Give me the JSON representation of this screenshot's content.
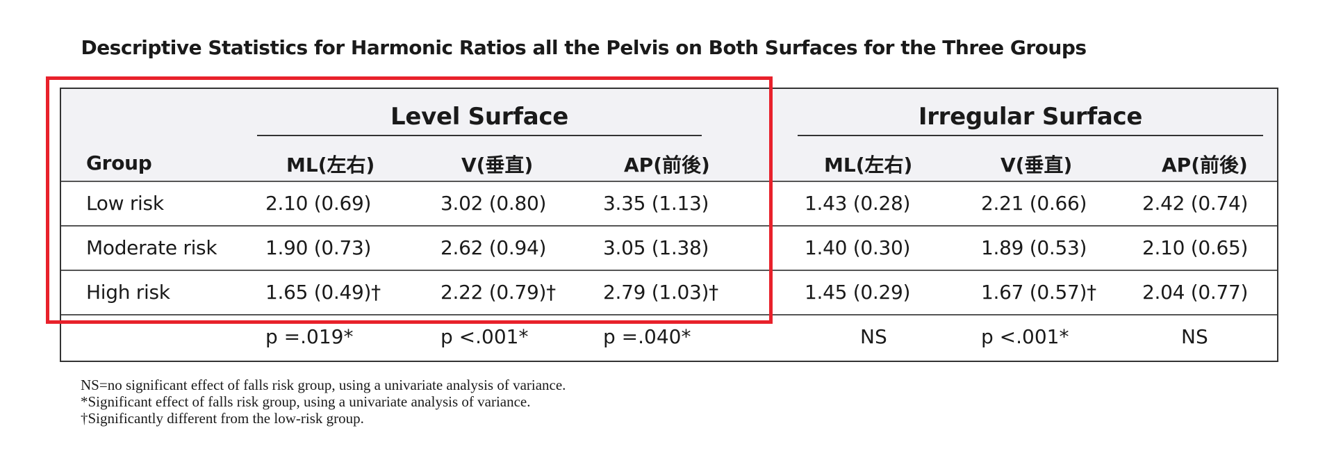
{
  "title": "Descriptive Statistics for Harmonic Ratios all the Pelvis on Both Surfaces for the Three Groups",
  "table": {
    "group_header": "Group",
    "surfaces": [
      {
        "label": "Level Surface",
        "columns": [
          "ML(左右)",
          "V(垂直)",
          "AP(前後)"
        ]
      },
      {
        "label": "Irregular Surface",
        "columns": [
          "ML(左右)",
          "V(垂直)",
          "AP(前後)"
        ]
      }
    ],
    "rows": [
      {
        "group": "Low risk",
        "level": [
          "2.10 (0.69)",
          "3.02 (0.80)",
          "3.35 (1.13)"
        ],
        "irregular": [
          "1.43 (0.28)",
          "2.21 (0.66)",
          "2.42 (0.74)"
        ]
      },
      {
        "group": "Moderate risk",
        "level": [
          "1.90 (0.73)",
          "2.62 (0.94)",
          "3.05 (1.38)"
        ],
        "irregular": [
          "1.40 (0.30)",
          "1.89 (0.53)",
          "2.10 (0.65)"
        ]
      },
      {
        "group": "High risk",
        "level": [
          "1.65 (0.49)†",
          "2.22 (0.79)†",
          "2.79 (1.03)†"
        ],
        "irregular": [
          "1.45 (0.29)",
          "1.67 (0.57)†",
          "2.04 (0.77)"
        ]
      }
    ],
    "p_values": {
      "level": [
        "p =.019*",
        "p <.001*",
        "p =.040*"
      ],
      "irregular": [
        "NS",
        "p <.001*",
        "NS"
      ]
    }
  },
  "footnotes": [
    "NS=no significant effect of falls risk group, using a univariate analysis of variance.",
    "*Significant effect of falls risk group, using a univariate analysis of variance.",
    "†Significantly different from the low-risk group."
  ],
  "colors": {
    "highlight": "#e8212b",
    "header_bg": "#f2f2f5"
  }
}
